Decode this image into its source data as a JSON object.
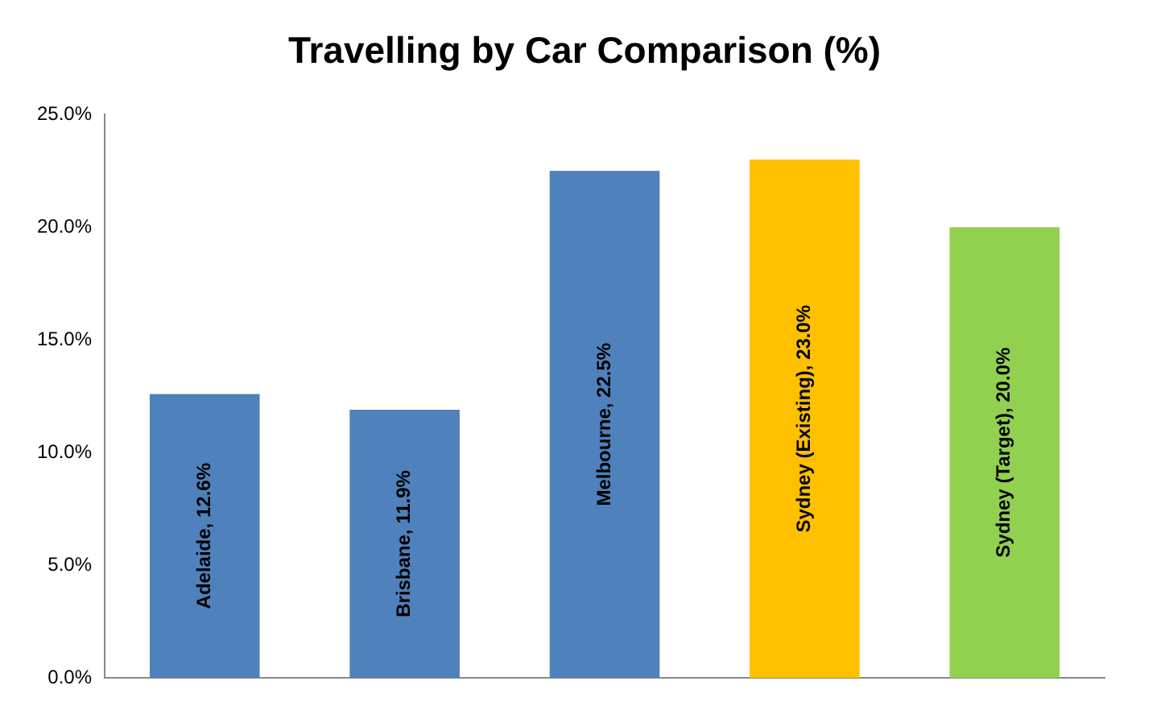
{
  "chart_data": {
    "type": "bar",
    "title": "Travelling by Car Comparison (%)",
    "categories": [
      null,
      null,
      null,
      null,
      null
    ],
    "values": [
      12.6,
      11.9,
      22.5,
      23.0,
      20.0
    ],
    "colors": [
      "#4f81bd",
      "#4f81bd",
      "#4f81bd",
      "#ffc000",
      "#92d050"
    ],
    "value_labels": [
      "Adelaide, 12.6%",
      "Brisbane, 11.9%",
      "Melbourne, 22.5%",
      "Sydney (Existing), 23.0%",
      "Sydney (Target), 20.0%"
    ],
    "ylim": [
      0,
      25
    ],
    "yticks": [
      {
        "value": 0,
        "label": "0.0%"
      },
      {
        "value": 5,
        "label": "5.0%"
      },
      {
        "value": 10,
        "label": "10.0%"
      },
      {
        "value": 15,
        "label": "15.0%"
      },
      {
        "value": 20,
        "label": "20.0%"
      },
      {
        "value": 25,
        "label": "25.0%"
      }
    ],
    "grid": false,
    "legend": false
  }
}
